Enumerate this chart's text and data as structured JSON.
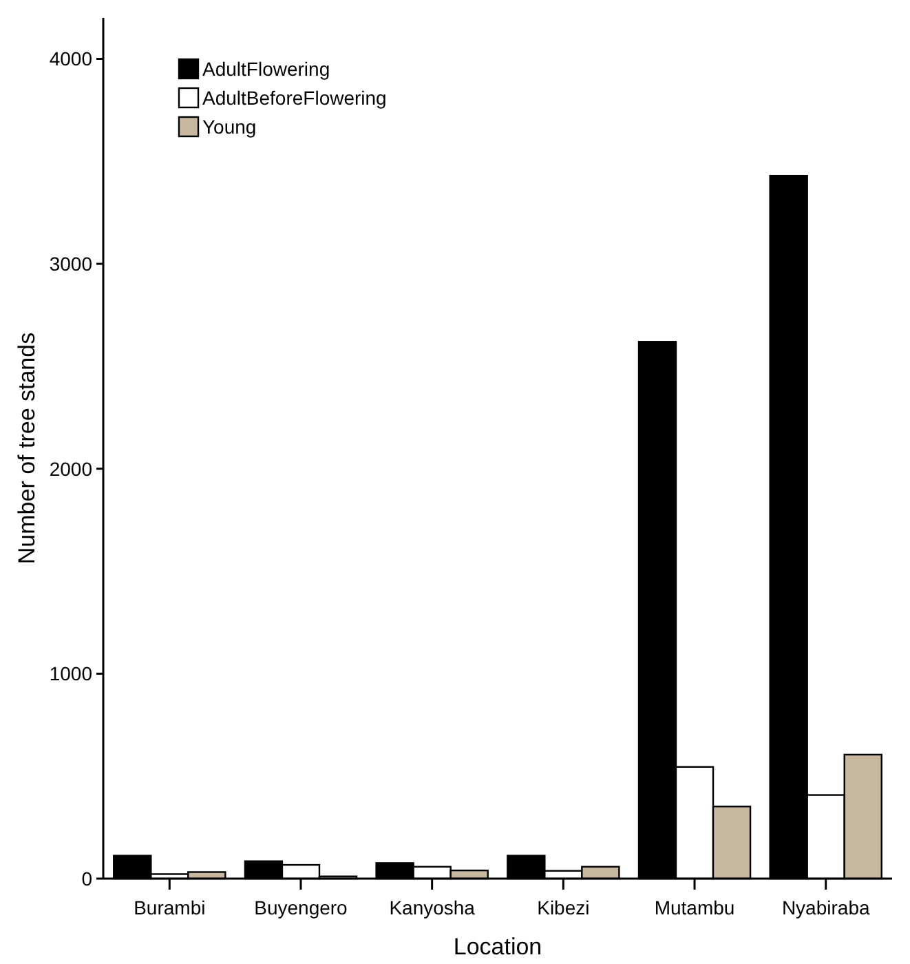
{
  "chart_data": {
    "type": "bar",
    "xlabel": "Location",
    "ylabel": "Number of tree stands",
    "categories": [
      "Burambi",
      "Buyengero",
      "Kanyosha",
      "Kibezi",
      "Mutambu",
      "Nyabiraba"
    ],
    "series": [
      {
        "name": "AdultFlowering",
        "color": "#000000",
        "values": [
          112,
          85,
          76,
          112,
          2620,
          3430
        ]
      },
      {
        "name": "AdultBeforeFlowering",
        "color": "#ffffff",
        "values": [
          22,
          67,
          58,
          38,
          545,
          408
        ]
      },
      {
        "name": "Young",
        "color": "#c8b8a0",
        "values": [
          32,
          11,
          40,
          58,
          352,
          605
        ]
      }
    ],
    "ylim": [
      0,
      4200
    ],
    "yticks": [
      0,
      1000,
      2000,
      3000,
      4000
    ],
    "grid": false,
    "legend": "top left"
  }
}
